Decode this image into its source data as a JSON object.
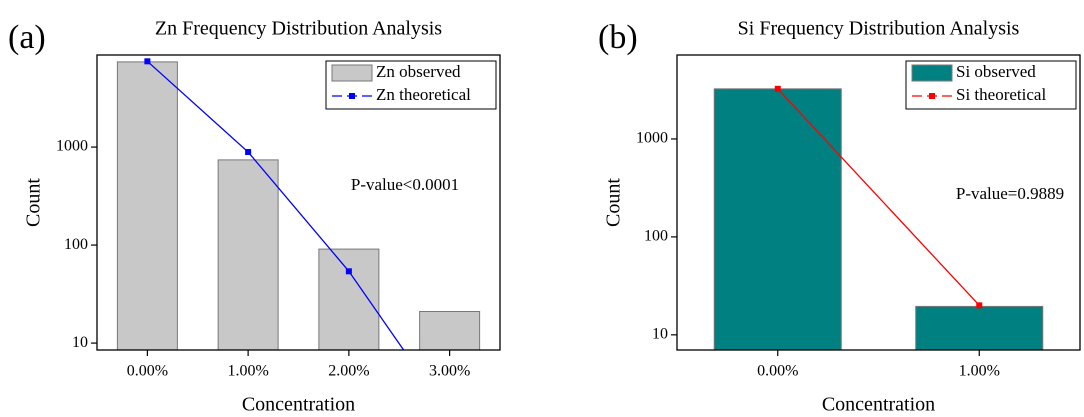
{
  "chart_data": [
    {
      "type": "bar",
      "panel_label": "(a)",
      "title": "Zn Frequency Distribution Analysis",
      "xlabel": "Concentration",
      "ylabel": "Count",
      "annotation": "P-value<0.0001",
      "categories": [
        "0.00%",
        "1.00%",
        "2.00%",
        "3.00%"
      ],
      "series": [
        {
          "name": "Zn observed",
          "type": "bar",
          "color": "#c8c8c8",
          "values": [
            7400,
            740,
            91,
            21
          ]
        },
        {
          "name": "Zn theoretical",
          "type": "line",
          "color": "#0000ff",
          "values": [
            7500,
            890,
            54,
            1.8
          ]
        }
      ],
      "yscale": "log",
      "ylim": [
        8.5,
        8700
      ],
      "yticks": [
        10,
        100,
        1000
      ],
      "legend": "upper right"
    },
    {
      "type": "bar",
      "panel_label": "(b)",
      "title": "Si Frequency Distribution Analysis",
      "xlabel": "Concentration",
      "ylabel": "Count",
      "annotation": "P-value=0.9889",
      "categories": [
        "0.00%",
        "1.00%"
      ],
      "series": [
        {
          "name": "Si observed",
          "type": "bar",
          "color": "#008080",
          "values": [
            3250,
            19.5
          ]
        },
        {
          "name": "Si theoretical",
          "type": "line",
          "color": "#ff0000",
          "values": [
            3250,
            20
          ]
        }
      ],
      "yscale": "log",
      "ylim": [
        7,
        7200
      ],
      "yticks": [
        10,
        100,
        1000
      ],
      "legend": "upper right"
    }
  ]
}
